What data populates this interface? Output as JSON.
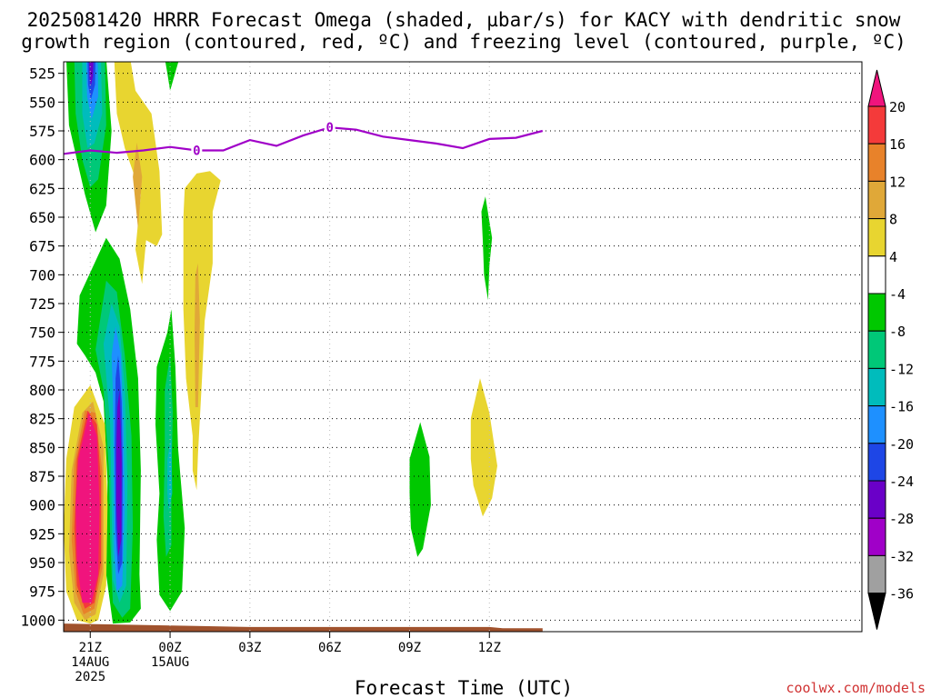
{
  "chart_data": {
    "type": "heatmap",
    "title_lines": [
      "2025081420 HRRR Forecast Omega (shaded, µbar/s) for KACY with dendritic snow",
      "growth region (contoured, red, ºC) and freezing level (contoured, purple, ºC)"
    ],
    "xlabel": "Forecast Time (UTC)",
    "credit": "coolwx.com/models",
    "x_unit": "hours since 2025-08-14 21Z",
    "xlim": [
      -1,
      29
    ],
    "x_ticks": [
      {
        "x": 0,
        "lines": [
          "21Z",
          "14AUG",
          "2025"
        ]
      },
      {
        "x": 3,
        "lines": [
          "00Z",
          "15AUG"
        ]
      },
      {
        "x": 6,
        "lines": [
          "03Z"
        ]
      },
      {
        "x": 9,
        "lines": [
          "06Z"
        ]
      },
      {
        "x": 12,
        "lines": [
          "09Z"
        ]
      },
      {
        "x": 15,
        "lines": [
          "12Z"
        ]
      }
    ],
    "y_unit": "hPa",
    "ylim": [
      1010,
      515
    ],
    "y_ticks": [
      525,
      550,
      575,
      600,
      625,
      650,
      675,
      700,
      725,
      750,
      775,
      800,
      825,
      850,
      875,
      900,
      925,
      950,
      975,
      1000
    ],
    "grid": true,
    "colorbar": {
      "labels": [
        "20",
        "16",
        "12",
        "8",
        "4",
        "-4",
        "-8",
        "-12",
        "-16",
        "-20",
        "-24",
        "-28",
        "-32",
        "-36"
      ],
      "colors": [
        "#f0147d",
        "#f43a3a",
        "#e8822a",
        "#e0a838",
        "#e8d530",
        "#ffffff",
        "#00c800",
        "#00c878",
        "#00bcbc",
        "#1e90ff",
        "#1e46e6",
        "#6a00c8",
        "#a000c8",
        "#a0a0a0"
      ]
    },
    "freezing_level": {
      "color": "#a000c8",
      "label": "0",
      "label_points": [
        [
          4,
          592
        ],
        [
          9,
          572
        ]
      ],
      "points": [
        [
          -1,
          595
        ],
        [
          0,
          592
        ],
        [
          1,
          594
        ],
        [
          2,
          592
        ],
        [
          3,
          589
        ],
        [
          4,
          592
        ],
        [
          5,
          592
        ],
        [
          6,
          583
        ],
        [
          7,
          588
        ],
        [
          8,
          579
        ],
        [
          9,
          572
        ],
        [
          10,
          574
        ],
        [
          11,
          580
        ],
        [
          12,
          583
        ],
        [
          13,
          586
        ],
        [
          14,
          590
        ],
        [
          15,
          582
        ],
        [
          16,
          581
        ],
        [
          17,
          575
        ]
      ]
    },
    "terrain_color": "#a0522d",
    "omega_regions": [
      {
        "cat": "-8",
        "points": [
          [
            -0.9,
            512
          ],
          [
            0.6,
            512
          ],
          [
            0.8,
            575
          ],
          [
            0.6,
            640
          ],
          [
            0.2,
            663
          ],
          [
            -0.2,
            630
          ],
          [
            -0.8,
            570
          ]
        ]
      },
      {
        "cat": "-12",
        "points": [
          [
            -0.6,
            512
          ],
          [
            0.55,
            512
          ],
          [
            0.6,
            570
          ],
          [
            0.3,
            617
          ],
          [
            0,
            624
          ],
          [
            -0.3,
            600
          ],
          [
            -0.55,
            560
          ]
        ]
      },
      {
        "cat": "-16",
        "points": [
          [
            -0.3,
            512
          ],
          [
            0.4,
            512
          ],
          [
            0.45,
            560
          ],
          [
            0.15,
            586
          ],
          [
            -0.1,
            590
          ],
          [
            -0.3,
            560
          ]
        ]
      },
      {
        "cat": "-20",
        "points": [
          [
            -0.15,
            512
          ],
          [
            0.28,
            512
          ],
          [
            0.3,
            545
          ],
          [
            0.05,
            565
          ],
          [
            -0.12,
            545
          ]
        ]
      },
      {
        "cat": "-24",
        "points": [
          [
            -0.1,
            512
          ],
          [
            0.2,
            512
          ],
          [
            0.18,
            535
          ],
          [
            0.02,
            548
          ],
          [
            -0.08,
            535
          ]
        ]
      },
      {
        "cat": "-28",
        "points": [
          [
            -0.05,
            512
          ],
          [
            0.12,
            512
          ],
          [
            0.1,
            528
          ],
          [
            0.02,
            536
          ],
          [
            -0.03,
            528
          ]
        ]
      },
      {
        "cat": "4",
        "points": [
          [
            0.9,
            512
          ],
          [
            1.5,
            512
          ],
          [
            1.7,
            540
          ],
          [
            2.3,
            560
          ],
          [
            2.6,
            610
          ],
          [
            2.7,
            665
          ],
          [
            2.5,
            675
          ],
          [
            2.1,
            670
          ],
          [
            1.95,
            708
          ],
          [
            1.7,
            678
          ],
          [
            1.9,
            630
          ],
          [
            1.3,
            590
          ],
          [
            1.0,
            560
          ]
        ]
      },
      {
        "cat": "8",
        "points": [
          [
            1.75,
            585
          ],
          [
            1.95,
            615
          ],
          [
            1.8,
            660
          ],
          [
            1.6,
            615
          ]
        ]
      },
      {
        "cat": "-8",
        "points": [
          [
            2.8,
            512
          ],
          [
            3.35,
            512
          ],
          [
            3.0,
            540
          ],
          [
            2.9,
            525
          ]
        ]
      },
      {
        "cat": "-8",
        "points": [
          [
            -0.5,
            760
          ],
          [
            -0.4,
            718
          ],
          [
            0,
            698
          ],
          [
            0.6,
            668
          ],
          [
            1.1,
            686
          ],
          [
            1.5,
            730
          ],
          [
            1.8,
            790
          ],
          [
            1.9,
            870
          ],
          [
            1.85,
            960
          ],
          [
            1.9,
            990
          ],
          [
            1.5,
            1002
          ],
          [
            0.85,
            1003
          ],
          [
            0.6,
            960
          ],
          [
            0.65,
            880
          ],
          [
            0.5,
            810
          ],
          [
            0.2,
            785
          ],
          [
            -0.2,
            770
          ]
        ]
      },
      {
        "cat": "-12",
        "points": [
          [
            0.2,
            765
          ],
          [
            0.6,
            705
          ],
          [
            1.0,
            715
          ],
          [
            1.3,
            770
          ],
          [
            1.55,
            840
          ],
          [
            1.6,
            920
          ],
          [
            1.5,
            990
          ],
          [
            1.2,
            998
          ],
          [
            0.85,
            985
          ],
          [
            0.75,
            930
          ],
          [
            0.7,
            870
          ],
          [
            0.5,
            800
          ]
        ]
      },
      {
        "cat": "-16",
        "points": [
          [
            0.5,
            760
          ],
          [
            0.8,
            725
          ],
          [
            1.1,
            745
          ],
          [
            1.3,
            800
          ],
          [
            1.4,
            880
          ],
          [
            1.35,
            970
          ],
          [
            1.1,
            985
          ],
          [
            0.85,
            965
          ],
          [
            0.8,
            900
          ],
          [
            0.75,
            830
          ]
        ]
      },
      {
        "cat": "-20",
        "points": [
          [
            0.8,
            770
          ],
          [
            0.95,
            745
          ],
          [
            1.15,
            770
          ],
          [
            1.25,
            830
          ],
          [
            1.3,
            900
          ],
          [
            1.2,
            970
          ],
          [
            1.0,
            975
          ],
          [
            0.9,
            940
          ],
          [
            0.88,
            860
          ],
          [
            0.85,
            800
          ]
        ]
      },
      {
        "cat": "-24",
        "points": [
          [
            0.95,
            790
          ],
          [
            1.05,
            770
          ],
          [
            1.18,
            810
          ],
          [
            1.22,
            870
          ],
          [
            1.2,
            950
          ],
          [
            1.05,
            960
          ],
          [
            0.95,
            920
          ],
          [
            0.92,
            850
          ]
        ]
      },
      {
        "cat": "-28",
        "points": [
          [
            1.02,
            815
          ],
          [
            1.1,
            800
          ],
          [
            1.18,
            860
          ],
          [
            1.17,
            930
          ],
          [
            1.05,
            945
          ],
          [
            0.98,
            900
          ],
          [
            0.98,
            850
          ]
        ]
      },
      {
        "cat": "4",
        "points": [
          [
            -0.9,
            860
          ],
          [
            -0.6,
            815
          ],
          [
            0,
            796
          ],
          [
            0.55,
            830
          ],
          [
            0.65,
            900
          ],
          [
            0.6,
            970
          ],
          [
            0.3,
            1000
          ],
          [
            0,
            1003
          ],
          [
            -0.5,
            1000
          ],
          [
            -0.9,
            975
          ],
          [
            -1.0,
            920
          ]
        ]
      },
      {
        "cat": "8",
        "points": [
          [
            -0.7,
            870
          ],
          [
            -0.3,
            820
          ],
          [
            0.1,
            810
          ],
          [
            0.5,
            850
          ],
          [
            0.5,
            960
          ],
          [
            0.2,
            995
          ],
          [
            -0.2,
            1000
          ],
          [
            -0.6,
            985
          ],
          [
            -0.8,
            940
          ]
        ]
      },
      {
        "cat": "12",
        "points": [
          [
            -0.6,
            865
          ],
          [
            -0.2,
            818
          ],
          [
            0.2,
            820
          ],
          [
            0.45,
            870
          ],
          [
            0.45,
            955
          ],
          [
            0.15,
            990
          ],
          [
            -0.25,
            995
          ],
          [
            -0.55,
            975
          ],
          [
            -0.7,
            930
          ]
        ]
      },
      {
        "cat": "16",
        "points": [
          [
            -0.5,
            860
          ],
          [
            -0.1,
            818
          ],
          [
            0.25,
            830
          ],
          [
            0.4,
            880
          ],
          [
            0.4,
            950
          ],
          [
            0.15,
            985
          ],
          [
            -0.2,
            990
          ],
          [
            -0.5,
            970
          ],
          [
            -0.6,
            920
          ]
        ]
      },
      {
        "cat": "20",
        "points": [
          [
            -0.45,
            860
          ],
          [
            -0.05,
            820
          ],
          [
            0.25,
            840
          ],
          [
            0.35,
            900
          ],
          [
            0.3,
            960
          ],
          [
            0.05,
            985
          ],
          [
            -0.3,
            985
          ],
          [
            -0.5,
            950
          ],
          [
            -0.55,
            900
          ]
        ]
      },
      {
        "cat": "-8",
        "points": [
          [
            2.5,
            780
          ],
          [
            2.9,
            750
          ],
          [
            3.05,
            730
          ],
          [
            3.2,
            780
          ],
          [
            3.3,
            850
          ],
          [
            3.55,
            920
          ],
          [
            3.45,
            975
          ],
          [
            3.0,
            992
          ],
          [
            2.6,
            978
          ],
          [
            2.5,
            930
          ],
          [
            2.6,
            890
          ],
          [
            2.45,
            830
          ]
        ]
      },
      {
        "cat": "-12",
        "points": [
          [
            2.8,
            800
          ],
          [
            3.0,
            770
          ],
          [
            3.1,
            820
          ],
          [
            3.05,
            880
          ],
          [
            3.05,
            935
          ],
          [
            2.85,
            945
          ],
          [
            2.75,
            910
          ],
          [
            2.8,
            850
          ]
        ]
      },
      {
        "cat": "-16",
        "points": [
          [
            2.9,
            860
          ],
          [
            3.05,
            840
          ],
          [
            3.08,
            890
          ],
          [
            2.95,
            905
          ],
          [
            2.9,
            890
          ]
        ]
      },
      {
        "cat": "4",
        "points": [
          [
            3.5,
            650
          ],
          [
            3.55,
            625
          ],
          [
            4.0,
            612
          ],
          [
            4.5,
            610
          ],
          [
            4.9,
            618
          ],
          [
            4.6,
            645
          ],
          [
            4.6,
            690
          ],
          [
            4.3,
            740
          ],
          [
            4.2,
            790
          ],
          [
            4.05,
            855
          ],
          [
            4.0,
            887
          ],
          [
            3.85,
            870
          ],
          [
            3.85,
            840
          ],
          [
            3.6,
            790
          ],
          [
            3.5,
            730
          ],
          [
            3.5,
            680
          ]
        ]
      },
      {
        "cat": "8",
        "points": [
          [
            3.95,
            700
          ],
          [
            4.05,
            690
          ],
          [
            4.12,
            740
          ],
          [
            4.05,
            815
          ],
          [
            3.95,
            815
          ],
          [
            3.92,
            750
          ]
        ]
      },
      {
        "cat": "-8",
        "points": [
          [
            14.7,
            645
          ],
          [
            14.85,
            632
          ],
          [
            15.1,
            668
          ],
          [
            15.0,
            692
          ],
          [
            14.95,
            722
          ],
          [
            14.8,
            700
          ],
          [
            14.75,
            670
          ]
        ]
      },
      {
        "cat": "4",
        "points": [
          [
            14.3,
            825
          ],
          [
            14.65,
            790
          ],
          [
            15.0,
            820
          ],
          [
            15.3,
            866
          ],
          [
            15.1,
            894
          ],
          [
            14.75,
            910
          ],
          [
            14.4,
            883
          ],
          [
            14.3,
            860
          ]
        ]
      },
      {
        "cat": "-8",
        "points": [
          [
            12.0,
            860
          ],
          [
            12.4,
            828
          ],
          [
            12.75,
            858
          ],
          [
            12.8,
            900
          ],
          [
            12.5,
            938
          ],
          [
            12.3,
            945
          ],
          [
            12.05,
            920
          ],
          [
            12.0,
            890
          ]
        ]
      }
    ]
  }
}
